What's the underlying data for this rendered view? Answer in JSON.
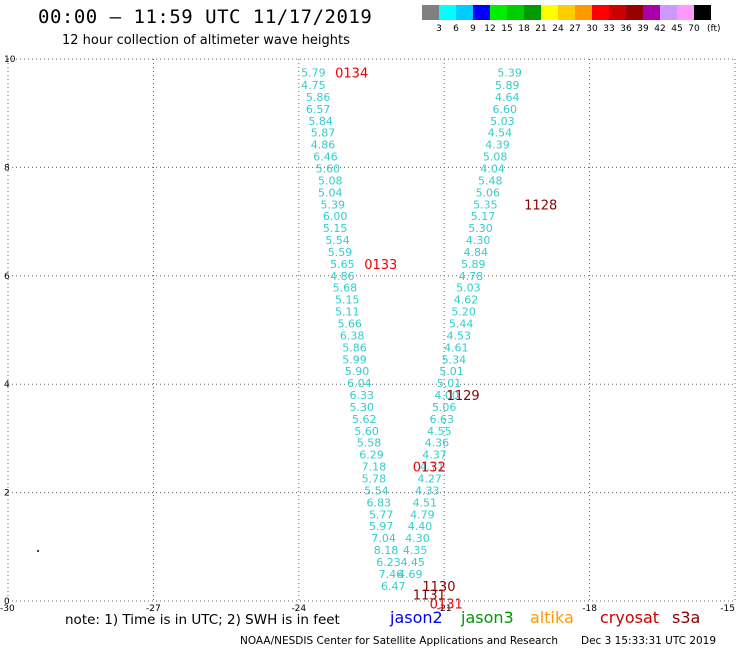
{
  "header": {
    "title": "00:00 – 11:59 UTC 11/17/2019",
    "subtitle": "12 hour collection of altimeter wave heights"
  },
  "color_scale": {
    "labels": [
      "3",
      "6",
      "9",
      "12",
      "15",
      "18",
      "21",
      "24",
      "27",
      "30",
      "33",
      "36",
      "39",
      "42",
      "45",
      "70"
    ],
    "unit": "(ft)",
    "colors": [
      "#808080",
      "#00ffff",
      "#00ccff",
      "#0000ff",
      "#00ee00",
      "#00cc00",
      "#009900",
      "#ffff00",
      "#ffcc00",
      "#ff9900",
      "#ff0000",
      "#cc0000",
      "#990000",
      "#aa00aa",
      "#cc99ff",
      "#ff99ff",
      "#000000"
    ]
  },
  "footer": {
    "note": "note: 1) Time is in UTC; 2) SWH is in feet",
    "credit": "NOAA/NESDIS Center for Satellite Applications and Research",
    "timestamp": "Dec  3 15:33:31 UTC 2019",
    "legend": [
      {
        "label": "jason2",
        "color": "#0000ee"
      },
      {
        "label": "jason3",
        "color": "#009900"
      },
      {
        "label": "altika",
        "color": "#ff9900"
      },
      {
        "label": "cryosat",
        "color": "#cc0000"
      },
      {
        "label": "s3a",
        "color": "#880000"
      }
    ]
  },
  "chart_data": {
    "type": "scatter",
    "xlim": [
      -30,
      -15
    ],
    "ylim": [
      0,
      10
    ],
    "x_ticks": [
      "-30",
      "-27",
      "-24",
      "-21",
      "-18",
      "-15"
    ],
    "y_ticks": [
      "0",
      "2",
      "4",
      "6",
      "8",
      "10"
    ],
    "grid": true,
    "value_color": "#33cccc",
    "tracks": [
      {
        "name": "west-track",
        "points": [
          {
            "x": -23.7,
            "y": 9.75,
            "v": "5.79"
          },
          {
            "x": -23.7,
            "y": 9.52,
            "v": "4.75"
          },
          {
            "x": -23.6,
            "y": 9.3,
            "v": "5.86"
          },
          {
            "x": -23.6,
            "y": 9.08,
            "v": "6.57"
          },
          {
            "x": -23.55,
            "y": 8.86,
            "v": "5.84"
          },
          {
            "x": -23.5,
            "y": 8.64,
            "v": "5.87"
          },
          {
            "x": -23.5,
            "y": 8.42,
            "v": "4.86"
          },
          {
            "x": -23.45,
            "y": 8.2,
            "v": "6.46"
          },
          {
            "x": -23.4,
            "y": 7.98,
            "v": "5.60"
          },
          {
            "x": -23.35,
            "y": 7.76,
            "v": "5.08"
          },
          {
            "x": -23.35,
            "y": 7.54,
            "v": "5.04"
          },
          {
            "x": -23.3,
            "y": 7.32,
            "v": "5.39"
          },
          {
            "x": -23.25,
            "y": 7.1,
            "v": "6.00"
          },
          {
            "x": -23.25,
            "y": 6.88,
            "v": "5.15"
          },
          {
            "x": -23.2,
            "y": 6.66,
            "v": "5.54"
          },
          {
            "x": -23.15,
            "y": 6.44,
            "v": "5.59"
          },
          {
            "x": -23.1,
            "y": 6.22,
            "v": "5.65"
          },
          {
            "x": -23.1,
            "y": 6.0,
            "v": "4.86"
          },
          {
            "x": -23.05,
            "y": 5.78,
            "v": "5.68"
          },
          {
            "x": -23.0,
            "y": 5.56,
            "v": "5.15"
          },
          {
            "x": -23.0,
            "y": 5.34,
            "v": "5.11"
          },
          {
            "x": -22.95,
            "y": 5.12,
            "v": "5.66"
          },
          {
            "x": -22.9,
            "y": 4.9,
            "v": "6.38"
          },
          {
            "x": -22.85,
            "y": 4.68,
            "v": "5.86"
          },
          {
            "x": -22.85,
            "y": 4.46,
            "v": "5.99"
          },
          {
            "x": -22.8,
            "y": 4.24,
            "v": "5.90"
          },
          {
            "x": -22.75,
            "y": 4.02,
            "v": "6.04"
          },
          {
            "x": -22.7,
            "y": 3.8,
            "v": "6.33"
          },
          {
            "x": -22.7,
            "y": 3.58,
            "v": "5.30"
          },
          {
            "x": -22.65,
            "y": 3.36,
            "v": "5.62"
          },
          {
            "x": -22.6,
            "y": 3.14,
            "v": "5.60"
          },
          {
            "x": -22.55,
            "y": 2.92,
            "v": "5.58"
          },
          {
            "x": -22.5,
            "y": 2.7,
            "v": "6.29"
          },
          {
            "x": -22.45,
            "y": 2.48,
            "v": "7.18"
          },
          {
            "x": -22.45,
            "y": 2.26,
            "v": "5.78"
          },
          {
            "x": -22.4,
            "y": 2.04,
            "v": "5.54"
          },
          {
            "x": -22.35,
            "y": 1.82,
            "v": "6.83"
          },
          {
            "x": -22.3,
            "y": 1.6,
            "v": "5.77"
          },
          {
            "x": -22.3,
            "y": 1.38,
            "v": "5.97"
          },
          {
            "x": -22.25,
            "y": 1.16,
            "v": "7.04"
          },
          {
            "x": -22.2,
            "y": 0.94,
            "v": "8.18"
          },
          {
            "x": -22.15,
            "y": 0.72,
            "v": "6.23"
          },
          {
            "x": -22.1,
            "y": 0.5,
            "v": "7.46"
          },
          {
            "x": -22.05,
            "y": 0.28,
            "v": "6.47"
          }
        ]
      },
      {
        "name": "east-track",
        "points": [
          {
            "x": -19.65,
            "y": 9.75,
            "v": "5.39"
          },
          {
            "x": -19.7,
            "y": 9.52,
            "v": "5.89"
          },
          {
            "x": -19.7,
            "y": 9.3,
            "v": "4.64"
          },
          {
            "x": -19.75,
            "y": 9.08,
            "v": "6.60"
          },
          {
            "x": -19.8,
            "y": 8.86,
            "v": "5.03"
          },
          {
            "x": -19.85,
            "y": 8.64,
            "v": "4.54"
          },
          {
            "x": -19.9,
            "y": 8.42,
            "v": "4.39"
          },
          {
            "x": -19.95,
            "y": 8.2,
            "v": "5.08"
          },
          {
            "x": -20.0,
            "y": 7.98,
            "v": "4.04"
          },
          {
            "x": -20.05,
            "y": 7.76,
            "v": "5.48"
          },
          {
            "x": -20.1,
            "y": 7.54,
            "v": "5.06"
          },
          {
            "x": -20.15,
            "y": 7.32,
            "v": "5.35"
          },
          {
            "x": -20.2,
            "y": 7.1,
            "v": "5.17"
          },
          {
            "x": -20.25,
            "y": 6.88,
            "v": "5.30"
          },
          {
            "x": -20.3,
            "y": 6.66,
            "v": "4.30"
          },
          {
            "x": -20.35,
            "y": 6.44,
            "v": "4.84"
          },
          {
            "x": -20.4,
            "y": 6.22,
            "v": "5.89"
          },
          {
            "x": -20.45,
            "y": 6.0,
            "v": "4.78"
          },
          {
            "x": -20.5,
            "y": 5.78,
            "v": "5.03"
          },
          {
            "x": -20.55,
            "y": 5.56,
            "v": "4.62"
          },
          {
            "x": -20.6,
            "y": 5.34,
            "v": "5.20"
          },
          {
            "x": -20.65,
            "y": 5.12,
            "v": "5.44"
          },
          {
            "x": -20.7,
            "y": 4.9,
            "v": "4.53"
          },
          {
            "x": -20.75,
            "y": 4.68,
            "v": "4.61"
          },
          {
            "x": -20.8,
            "y": 4.46,
            "v": "5.34"
          },
          {
            "x": -20.85,
            "y": 4.24,
            "v": "5.01"
          },
          {
            "x": -20.9,
            "y": 4.02,
            "v": "5.01"
          },
          {
            "x": -20.95,
            "y": 3.8,
            "v": "4.00"
          },
          {
            "x": -21.0,
            "y": 3.58,
            "v": "5.06"
          },
          {
            "x": -21.05,
            "y": 3.36,
            "v": "6.63"
          },
          {
            "x": -21.1,
            "y": 3.14,
            "v": "4.55"
          },
          {
            "x": -21.15,
            "y": 2.92,
            "v": "4.36"
          },
          {
            "x": -21.2,
            "y": 2.7,
            "v": "4.37"
          },
          {
            "x": -21.25,
            "y": 2.48,
            "v": "4.71"
          },
          {
            "x": -21.3,
            "y": 2.26,
            "v": "4.27"
          },
          {
            "x": -21.35,
            "y": 2.04,
            "v": "4.33"
          },
          {
            "x": -21.4,
            "y": 1.82,
            "v": "4.51"
          },
          {
            "x": -21.45,
            "y": 1.6,
            "v": "4.79"
          },
          {
            "x": -21.5,
            "y": 1.38,
            "v": "4.40"
          },
          {
            "x": -21.55,
            "y": 1.16,
            "v": "4.30"
          },
          {
            "x": -21.6,
            "y": 0.94,
            "v": "4.35"
          },
          {
            "x": -21.65,
            "y": 0.72,
            "v": "4.45"
          },
          {
            "x": -21.7,
            "y": 0.5,
            "v": "4.69"
          }
        ]
      }
    ],
    "time_labels": [
      {
        "x": -23.25,
        "y": 9.75,
        "text": "0134",
        "color": "#ee0000"
      },
      {
        "x": -19.35,
        "y": 7.32,
        "text": "1128",
        "color": "#880000"
      },
      {
        "x": -22.65,
        "y": 6.22,
        "text": "0133",
        "color": "#ee0000"
      },
      {
        "x": -20.95,
        "y": 3.8,
        "text": "1129",
        "color": "#880000"
      },
      {
        "x": -21.65,
        "y": 2.48,
        "text": "0132",
        "color": "#ee0000"
      },
      {
        "x": -21.45,
        "y": 0.28,
        "text": "1130",
        "color": "#880000"
      },
      {
        "x": -21.65,
        "y": 0.12,
        "text": "1131",
        "color": "#880000"
      },
      {
        "x": -21.3,
        "y": -0.05,
        "text": "0131",
        "color": "#ee0000"
      }
    ]
  }
}
